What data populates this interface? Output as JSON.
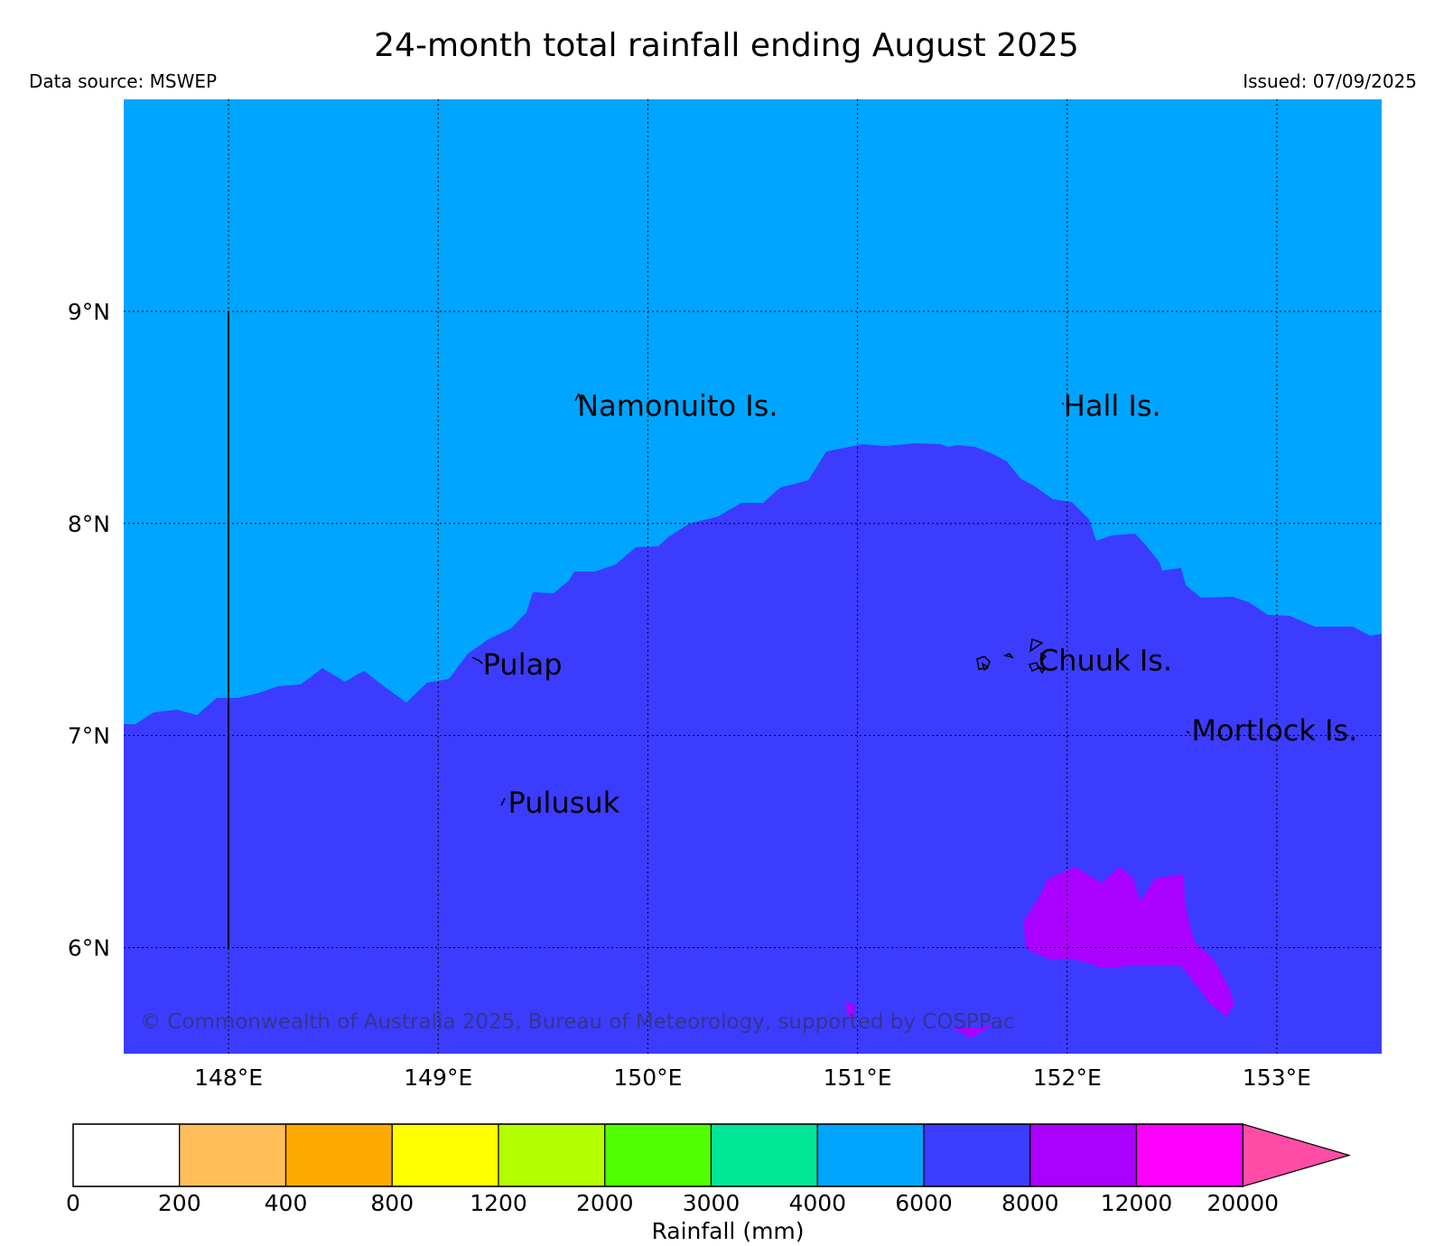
{
  "header": {
    "title": "24-month total rainfall ending August 2025",
    "data_source": "Data source: MSWEP",
    "issued": "Issued: 07/09/2025"
  },
  "map": {
    "extent": {
      "lon_min": 147.5,
      "lon_max": 153.5,
      "lat_min": 5.5,
      "lat_max": 10.0
    },
    "lon_ticks": [
      {
        "value": 148,
        "label": "148°E"
      },
      {
        "value": 149,
        "label": "149°E"
      },
      {
        "value": 150,
        "label": "150°E"
      },
      {
        "value": 151,
        "label": "151°E"
      },
      {
        "value": 152,
        "label": "152°E"
      },
      {
        "value": 153,
        "label": "153°E"
      }
    ],
    "lat_ticks": [
      {
        "value": 9,
        "label": "9°N"
      },
      {
        "value": 8,
        "label": "8°N"
      },
      {
        "value": 7,
        "label": "7°N"
      },
      {
        "value": 6,
        "label": "6°N"
      }
    ],
    "islands": [
      {
        "name": "Namonuito Is.",
        "lon": 149.65,
        "lat": 8.55
      },
      {
        "name": "Hall Is.",
        "lon": 151.97,
        "lat": 8.55
      },
      {
        "name": "Pulap",
        "lon": 149.2,
        "lat": 7.33
      },
      {
        "name": "Chuuk Is.",
        "lon": 151.85,
        "lat": 7.35
      },
      {
        "name": "Mortlock Is.",
        "lon": 152.58,
        "lat": 7.02
      },
      {
        "name": "Pulusuk",
        "lon": 149.32,
        "lat": 6.68
      }
    ],
    "copyright": "© Commonwealth of Australia 2025, Bureau of Meteorology, supported by COSPPac"
  },
  "colorbar": {
    "label": "Rainfall (mm)",
    "ticks": [
      "0",
      "200",
      "400",
      "800",
      "1200",
      "2000",
      "3000",
      "4000",
      "6000",
      "8000",
      "12000",
      "20000"
    ],
    "colors": [
      "#ffffff",
      "#ffbe5a",
      "#ffaa00",
      "#ffff00",
      "#b4ff00",
      "#50ff00",
      "#00e696",
      "#00a5ff",
      "#3c3cff",
      "#aa00ff",
      "#ff00ff"
    ],
    "extend_color": "#ff4da6"
  }
}
